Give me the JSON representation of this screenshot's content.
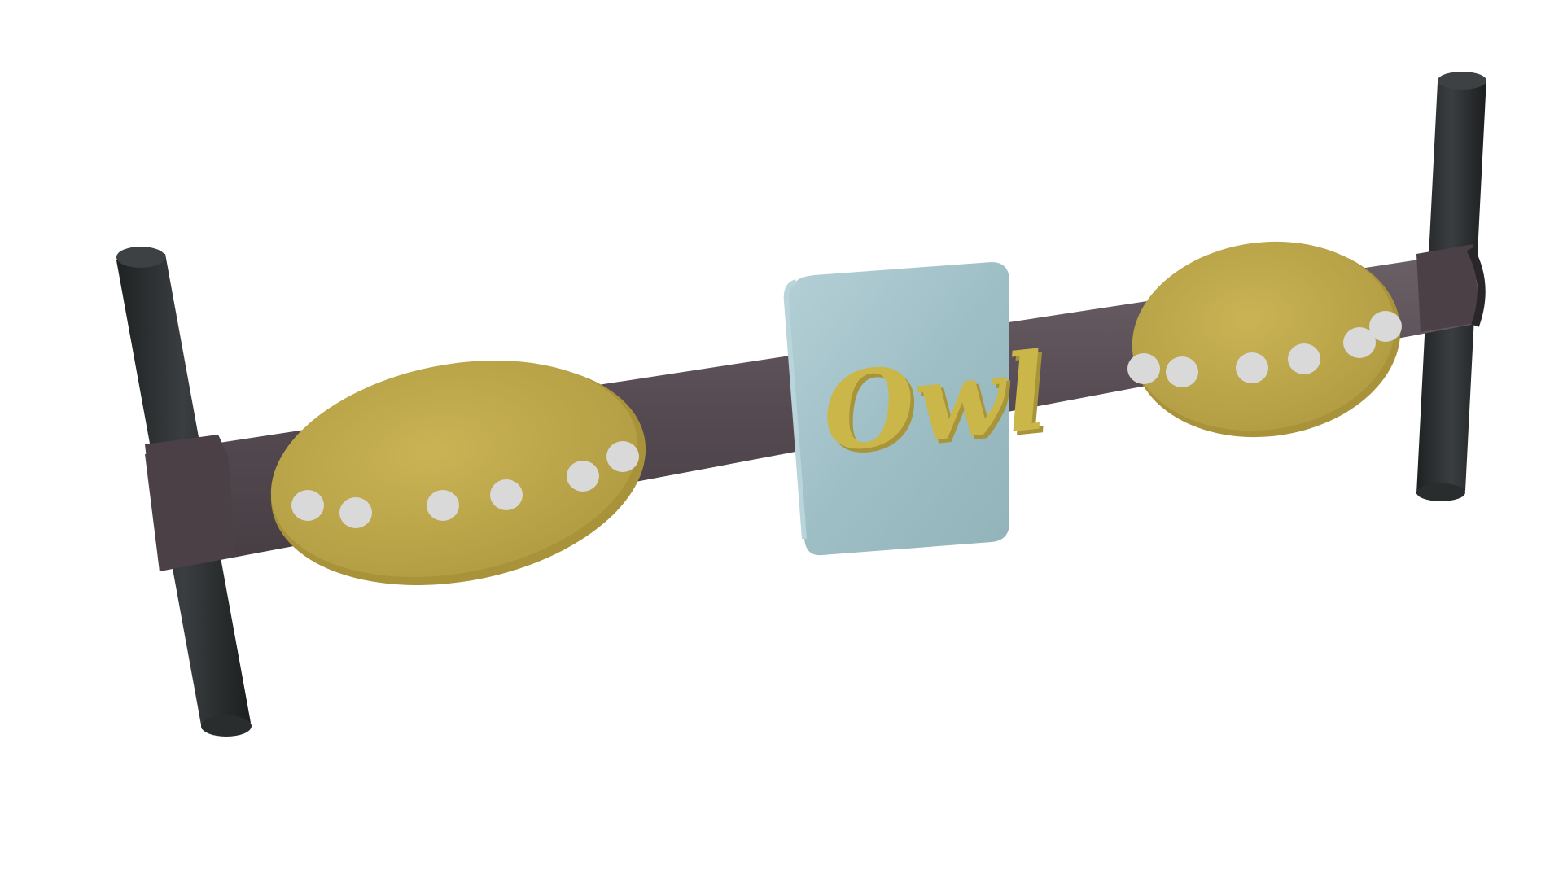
{
  "render": {
    "background": "#ffffff",
    "colors": {
      "post": "#2c2f30",
      "post_top": "#3c4042",
      "beam": "#5b5157",
      "beam_shadow": "#463d43",
      "oval_panel": "#c1ab4e",
      "oval_panel_shadow": "#a8933b",
      "dot": "#d9d9d9",
      "center_panel": "#9fbfc6",
      "center_panel_edge": "#b6d2d8",
      "logo": "#c8b447"
    },
    "logo_text": "Owl",
    "left_panel_dot_count": 6,
    "right_panel_dot_count": 6
  }
}
